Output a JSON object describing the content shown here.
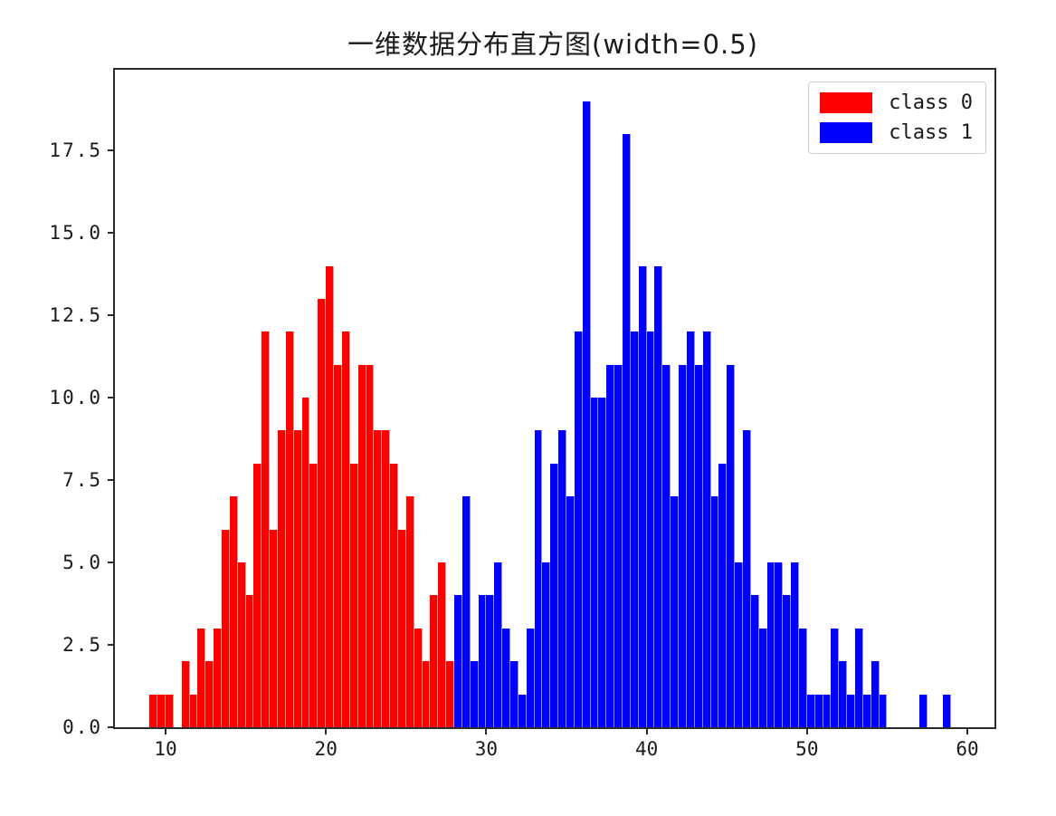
{
  "figure": {
    "title": "一维数据分布直方图(width=0.5)"
  },
  "legend": {
    "items": [
      {
        "label": "class 0",
        "color": "#ff0000"
      },
      {
        "label": "class 1",
        "color": "#0000ff"
      }
    ]
  },
  "axes": {
    "xmin": 6.84,
    "xmax": 61.69,
    "ymin": 0,
    "ymax": 19.95,
    "x_ticks": [
      {
        "value": 10,
        "label": "10"
      },
      {
        "value": 20,
        "label": "20"
      },
      {
        "value": 30,
        "label": "30"
      },
      {
        "value": 40,
        "label": "40"
      },
      {
        "value": 50,
        "label": "50"
      },
      {
        "value": 60,
        "label": "60"
      }
    ],
    "y_ticks": [
      {
        "value": 0,
        "label": "0.0"
      },
      {
        "value": 2.5,
        "label": "2.5"
      },
      {
        "value": 5,
        "label": "5.0"
      },
      {
        "value": 7.5,
        "label": "7.5"
      },
      {
        "value": 10,
        "label": "10.0"
      },
      {
        "value": 12.5,
        "label": "12.5"
      },
      {
        "value": 15,
        "label": "15.0"
      },
      {
        "value": 17.5,
        "label": "17.5"
      }
    ]
  },
  "chart_data": {
    "type": "bar",
    "title": "一维数据分布直方图(width=0.5)",
    "xlabel": "",
    "ylabel": "",
    "xlim": [
      6.84,
      61.69
    ],
    "ylim": [
      0,
      19.95
    ],
    "grid": false,
    "legend_position": "upper right",
    "bin_width": 0.5,
    "series": [
      {
        "name": "class 0",
        "color": "#ff0000",
        "bins": [
          [
            9.0,
            1
          ],
          [
            9.5,
            1
          ],
          [
            10.0,
            1
          ],
          [
            10.5,
            0
          ],
          [
            11.0,
            2
          ],
          [
            11.5,
            1
          ],
          [
            12.0,
            3
          ],
          [
            12.5,
            2
          ],
          [
            13.0,
            3
          ],
          [
            13.5,
            6
          ],
          [
            14.0,
            7
          ],
          [
            14.5,
            5
          ],
          [
            15.0,
            4
          ],
          [
            15.5,
            8
          ],
          [
            16.0,
            12
          ],
          [
            16.5,
            6
          ],
          [
            17.0,
            9
          ],
          [
            17.5,
            12
          ],
          [
            18.0,
            9
          ],
          [
            18.5,
            10
          ],
          [
            19.0,
            8
          ],
          [
            19.5,
            13
          ],
          [
            20.0,
            14
          ],
          [
            20.5,
            11
          ],
          [
            21.0,
            12
          ],
          [
            21.5,
            8
          ],
          [
            22.0,
            11
          ],
          [
            22.5,
            11
          ],
          [
            23.0,
            9
          ],
          [
            23.5,
            9
          ],
          [
            24.0,
            8
          ],
          [
            24.5,
            6
          ],
          [
            25.0,
            7
          ],
          [
            25.5,
            3
          ],
          [
            26.0,
            2
          ],
          [
            26.5,
            4
          ],
          [
            27.0,
            5
          ],
          [
            27.5,
            2
          ]
        ]
      },
      {
        "name": "class 1",
        "color": "#0000ff",
        "bins": [
          [
            28.0,
            4
          ],
          [
            28.5,
            7
          ],
          [
            29.0,
            2
          ],
          [
            29.5,
            4
          ],
          [
            30.0,
            4
          ],
          [
            30.5,
            5
          ],
          [
            31.0,
            3
          ],
          [
            31.5,
            2
          ],
          [
            32.0,
            1
          ],
          [
            32.5,
            3
          ],
          [
            33.0,
            9
          ],
          [
            33.5,
            5
          ],
          [
            34.0,
            8
          ],
          [
            34.5,
            9
          ],
          [
            35.0,
            7
          ],
          [
            35.5,
            12
          ],
          [
            36.0,
            19
          ],
          [
            36.5,
            10
          ],
          [
            37.0,
            10
          ],
          [
            37.5,
            11
          ],
          [
            38.0,
            11
          ],
          [
            38.5,
            18
          ],
          [
            39.0,
            12
          ],
          [
            39.5,
            14
          ],
          [
            40.0,
            12
          ],
          [
            40.5,
            14
          ],
          [
            41.0,
            11
          ],
          [
            41.5,
            7
          ],
          [
            42.0,
            11
          ],
          [
            42.5,
            12
          ],
          [
            43.0,
            11
          ],
          [
            43.5,
            12
          ],
          [
            44.0,
            7
          ],
          [
            44.5,
            8
          ],
          [
            45.0,
            11
          ],
          [
            45.5,
            5
          ],
          [
            46.0,
            9
          ],
          [
            46.5,
            4
          ],
          [
            47.0,
            3
          ],
          [
            47.5,
            5
          ],
          [
            48.0,
            5
          ],
          [
            48.5,
            4
          ],
          [
            49.0,
            5
          ],
          [
            49.5,
            3
          ],
          [
            50.0,
            1
          ],
          [
            50.5,
            1
          ],
          [
            51.0,
            1
          ],
          [
            51.5,
            3
          ],
          [
            52.0,
            2
          ],
          [
            52.5,
            1
          ],
          [
            53.0,
            3
          ],
          [
            53.5,
            1
          ],
          [
            54.0,
            2
          ],
          [
            54.5,
            1
          ],
          [
            55.0,
            0
          ],
          [
            55.5,
            0
          ],
          [
            56.0,
            0
          ],
          [
            56.5,
            0
          ],
          [
            57.0,
            1
          ],
          [
            57.5,
            0
          ],
          [
            58.0,
            0
          ],
          [
            58.5,
            1
          ]
        ]
      }
    ]
  }
}
